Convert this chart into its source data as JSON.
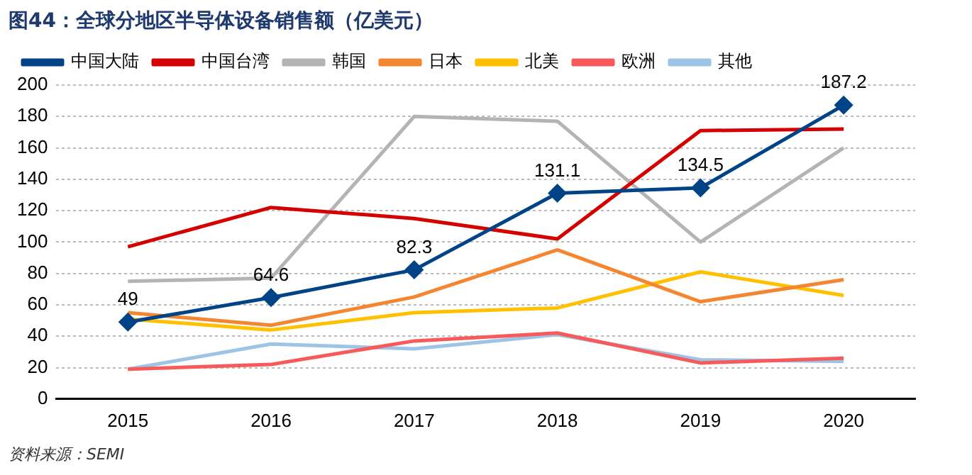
{
  "chart_data": {
    "type": "line",
    "title": "图44：全球分地区半导体设备销售额（亿美元）",
    "categories": [
      "2015",
      "2016",
      "2017",
      "2018",
      "2019",
      "2020"
    ],
    "series": [
      {
        "name": "中国大陆",
        "color": "#004386",
        "values": [
          49,
          64.6,
          82.3,
          131.1,
          134.5,
          187.2
        ],
        "marker": "diamond",
        "data_labels": true
      },
      {
        "name": "中国台湾",
        "color": "#d40000",
        "values": [
          97,
          122,
          115,
          102,
          171,
          172
        ]
      },
      {
        "name": "韩国",
        "color": "#b4b4b4",
        "values": [
          75,
          77,
          180,
          177,
          100,
          160
        ]
      },
      {
        "name": "日本",
        "color": "#f58631",
        "values": [
          55,
          47,
          65,
          95,
          62,
          76
        ]
      },
      {
        "name": "北美",
        "color": "#ffc000",
        "values": [
          51,
          44,
          55,
          58,
          81,
          66
        ]
      },
      {
        "name": "欧洲",
        "color": "#f75a5a",
        "values": [
          19,
          22,
          37,
          42,
          23,
          26
        ]
      },
      {
        "name": "其他",
        "color": "#9dc3e6",
        "values": [
          19,
          35,
          32,
          41,
          25,
          24
        ]
      }
    ],
    "ylim": [
      0,
      200
    ],
    "yticks": [
      0,
      20,
      40,
      60,
      80,
      100,
      120,
      140,
      160,
      180,
      200
    ],
    "grid": "y",
    "legend": "top",
    "marker": "none",
    "line_style": "solid",
    "annotations": [
      "资料来源：SEMI"
    ]
  }
}
